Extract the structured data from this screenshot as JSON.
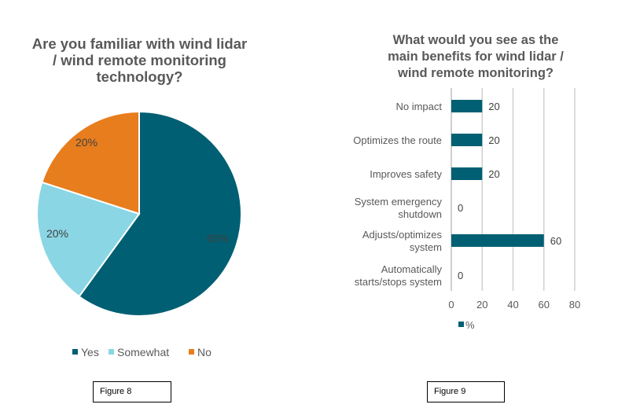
{
  "chart_data": [
    {
      "type": "pie",
      "title": "Are you familiar with wind lidar / wind remote monitoring technology?",
      "slices": [
        {
          "label": "Yes",
          "value": 60,
          "data_label": "60%",
          "color": "#005f73"
        },
        {
          "label": "Somewhat",
          "value": 20,
          "data_label": "20%",
          "color": "#8ad6e4"
        },
        {
          "label": "No",
          "value": 20,
          "data_label": "20%",
          "color": "#e87d1e"
        }
      ],
      "legend": "bottom"
    },
    {
      "type": "bar",
      "orientation": "horizontal",
      "title": "What would you see as the main benefits for wind lidar / wind remote monitoring?",
      "categories": [
        [
          "No impact"
        ],
        [
          "Optimizes the route"
        ],
        [
          "Improves safety"
        ],
        [
          "System emergency",
          "shutdown"
        ],
        [
          "Adjusts/optimizes",
          "system"
        ],
        [
          "Automatically",
          "starts/stops system"
        ]
      ],
      "series": [
        {
          "name": "%",
          "values": [
            20,
            20,
            20,
            0,
            60,
            0
          ],
          "color": "#005f73"
        }
      ],
      "xlim": [
        0,
        80
      ],
      "xticks": [
        "0",
        "20",
        "40",
        "60",
        "80"
      ],
      "grid": true,
      "legend": "bottom-left"
    }
  ],
  "captions": {
    "left": "Figure 8",
    "right": "Figure 9"
  },
  "titles": {
    "left": [
      "Are you familiar with wind lidar",
      "/ wind remote monitoring",
      "technology?"
    ],
    "right": [
      "What would you see as the",
      "main benefits for wind lidar /",
      "wind remote monitoring?"
    ]
  }
}
